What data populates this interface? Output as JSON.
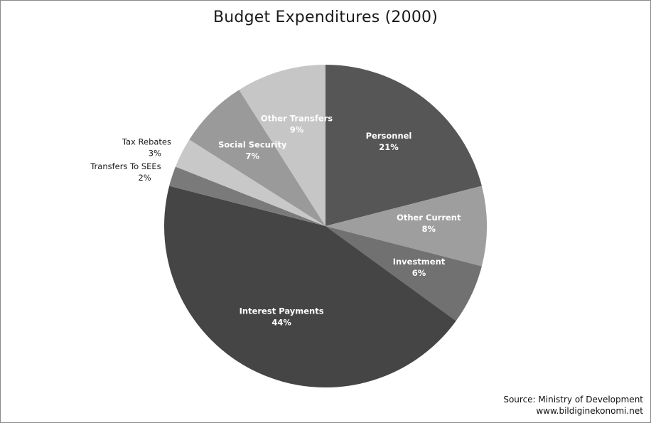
{
  "chart_data": {
    "type": "pie",
    "title": "Budget Expenditures (2000)",
    "start_angle_deg": 0,
    "direction": "clockwise",
    "slices": [
      {
        "label": "Personnel",
        "value": 21,
        "value_label": "21%",
        "color": "#565656",
        "label_color": "#ffffff",
        "label_placement": "inside"
      },
      {
        "label": "Other Current",
        "value": 8,
        "value_label": "8%",
        "color": "#9e9e9e",
        "label_color": "#ffffff",
        "label_placement": "inside"
      },
      {
        "label": "Investment",
        "value": 6,
        "value_label": "6%",
        "color": "#717171",
        "label_color": "#ffffff",
        "label_placement": "inside"
      },
      {
        "label": "Interest Payments",
        "value": 44,
        "value_label": "44%",
        "color": "#454545",
        "label_color": "#ffffff",
        "label_placement": "inside"
      },
      {
        "label": "Transfers To SEEs",
        "value": 2,
        "value_label": "2%",
        "color": "#7a7a7a",
        "label_color": "#1a1a1a",
        "label_placement": "outside"
      },
      {
        "label": "Tax Rebates",
        "value": 3,
        "value_label": "3%",
        "color": "#c8c8c8",
        "label_color": "#1a1a1a",
        "label_placement": "outside"
      },
      {
        "label": "Social Security",
        "value": 7,
        "value_label": "7%",
        "color": "#9a9a9a",
        "label_color": "#ffffff",
        "label_placement": "inside"
      },
      {
        "label": "Other Transfers",
        "value": 9,
        "value_label": "9%",
        "color": "#c6c6c6",
        "label_color": "#ffffff",
        "label_placement": "inside"
      }
    ]
  },
  "source": {
    "line1": "Source: Ministry  of Development",
    "line2": "www.bildiginekonomi.net"
  }
}
